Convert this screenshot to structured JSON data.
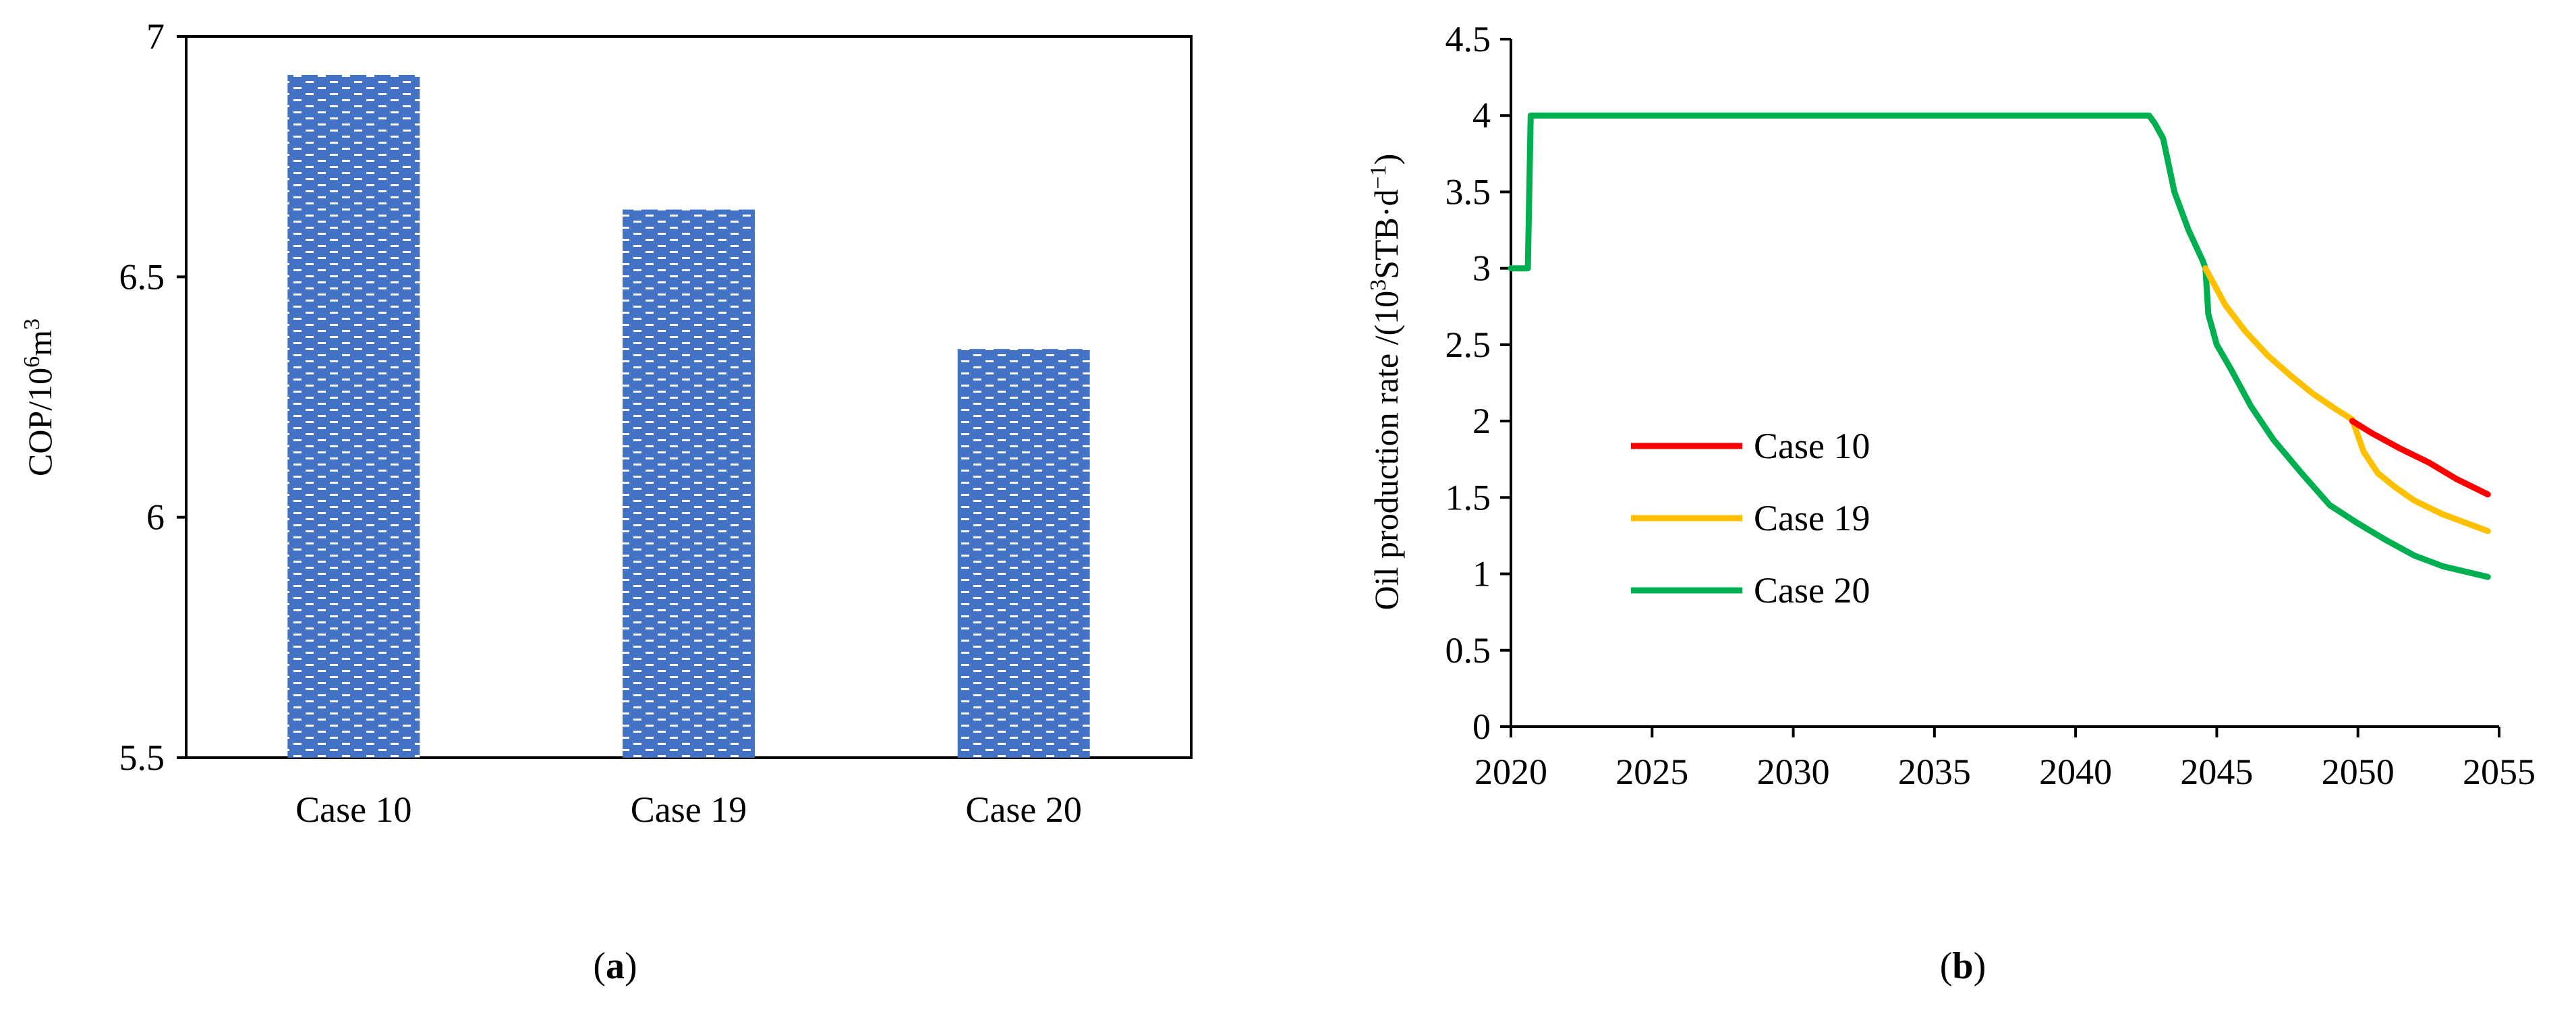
{
  "panel_labels": [
    "a",
    "b"
  ],
  "colors": {
    "bar_fill": "#4472C4",
    "case10": "#FF0000",
    "case19": "#FFC000",
    "case20": "#00B050",
    "axis": "#000000"
  },
  "chart_data": [
    {
      "type": "bar",
      "title": "",
      "categories": [
        "Case 10",
        "Case 19",
        "Case 20"
      ],
      "values": [
        6.92,
        6.64,
        6.35
      ],
      "xlabel": "",
      "ylabel": {
        "base": "COP/10",
        "sup": "6",
        "tail": "m",
        "sup2": "3"
      },
      "ylim": [
        5.5,
        7
      ],
      "yticks": [
        5.5,
        6,
        6.5,
        7
      ],
      "ytick_labels": [
        "5.5",
        "6",
        "6.5",
        "7"
      ],
      "grid": false,
      "bar_pattern": "brick-dotted"
    },
    {
      "type": "line",
      "title": "",
      "xlabel": "",
      "ylabel": {
        "base": "Oil production rate /(10",
        "sup": "3",
        "mid": "STB·d",
        "sup2": "−1",
        "tail": ")"
      },
      "xlim": [
        2020,
        2055
      ],
      "ylim": [
        0,
        4.5
      ],
      "xticks": [
        2020,
        2025,
        2030,
        2035,
        2040,
        2045,
        2050,
        2055
      ],
      "xtick_labels": [
        "2020",
        "2025",
        "2030",
        "2035",
        "2040",
        "2045",
        "2050",
        "2055"
      ],
      "yticks": [
        0,
        0.5,
        1,
        1.5,
        2,
        2.5,
        3,
        3.5,
        4,
        4.5
      ],
      "ytick_labels": [
        "0",
        "0.5",
        "1",
        "1.5",
        "2",
        "2.5",
        "3",
        "3.5",
        "4",
        "4.5"
      ],
      "grid": false,
      "legend_position": "center-left",
      "series": [
        {
          "name": "Case 10",
          "x": [
            2049.8,
            2050.5,
            2051.5,
            2052.5,
            2053.5,
            2054.6
          ],
          "y": [
            2.0,
            1.92,
            1.82,
            1.73,
            1.62,
            1.52
          ]
        },
        {
          "name": "Case 19",
          "x": [
            2044.6,
            2045.3,
            2046,
            2046.8,
            2047.6,
            2048.4,
            2049.2,
            2049.8,
            2050.2,
            2050.7,
            2051.3,
            2052,
            2053,
            2054.6
          ],
          "y": [
            3.0,
            2.76,
            2.59,
            2.43,
            2.3,
            2.18,
            2.08,
            2.01,
            1.8,
            1.66,
            1.57,
            1.48,
            1.39,
            1.28
          ]
        },
        {
          "name": "Case 20",
          "x": [
            2020,
            2020.6,
            2020.7,
            2021,
            2030,
            2040,
            2042.6,
            2042.8,
            2043.1,
            2043.5,
            2044,
            2044.5,
            2044.6,
            2044.7,
            2045,
            2045.5,
            2046.2,
            2047,
            2048,
            2049,
            2050,
            2051,
            2052,
            2053,
            2054.6
          ],
          "y": [
            3.0,
            3.0,
            4.0,
            4.0,
            4.0,
            4.0,
            4.0,
            3.95,
            3.85,
            3.5,
            3.25,
            3.05,
            3.0,
            2.7,
            2.5,
            2.34,
            2.1,
            1.88,
            1.66,
            1.45,
            1.33,
            1.22,
            1.12,
            1.05,
            0.98
          ]
        }
      ]
    }
  ]
}
